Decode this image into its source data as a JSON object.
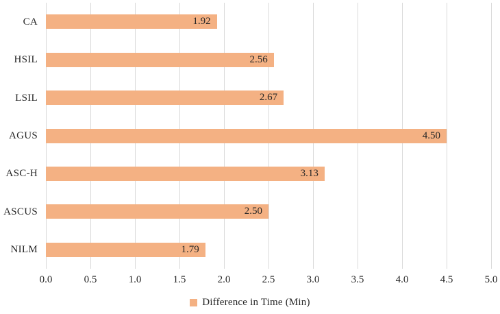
{
  "chart_data": {
    "type": "bar",
    "orientation": "horizontal",
    "title": "",
    "xlabel": "",
    "ylabel": "",
    "categories": [
      "CA",
      "HSIL",
      "LSIL",
      "AGUS",
      "ASC-H",
      "ASCUS",
      "NILM"
    ],
    "series": [
      {
        "name": "Difference in Time (Min)",
        "values": [
          1.92,
          2.56,
          2.67,
          4.5,
          3.13,
          2.5,
          1.79
        ],
        "value_labels": [
          "1.92",
          "2.56",
          "2.67",
          "4.50",
          "3.13",
          "2.50",
          "1.79"
        ]
      }
    ],
    "xlim": [
      0.0,
      5.0
    ],
    "x_tick_step": 0.5,
    "x_tick_labels": [
      "0.0",
      "0.5",
      "1.0",
      "1.5",
      "2.0",
      "2.5",
      "3.0",
      "3.5",
      "4.0",
      "4.5",
      "5.0"
    ],
    "grid": "vertical-on",
    "legend_position": "bottom-center",
    "legend": {
      "label": "Difference in Time (Min)",
      "swatch_color": "#F4B183"
    },
    "colors": {
      "bar_fill": "#F4B183",
      "gridline": "#D9D9D9",
      "text": "#262626",
      "value_label_text": "#262626",
      "background": "#FFFFFF"
    }
  }
}
